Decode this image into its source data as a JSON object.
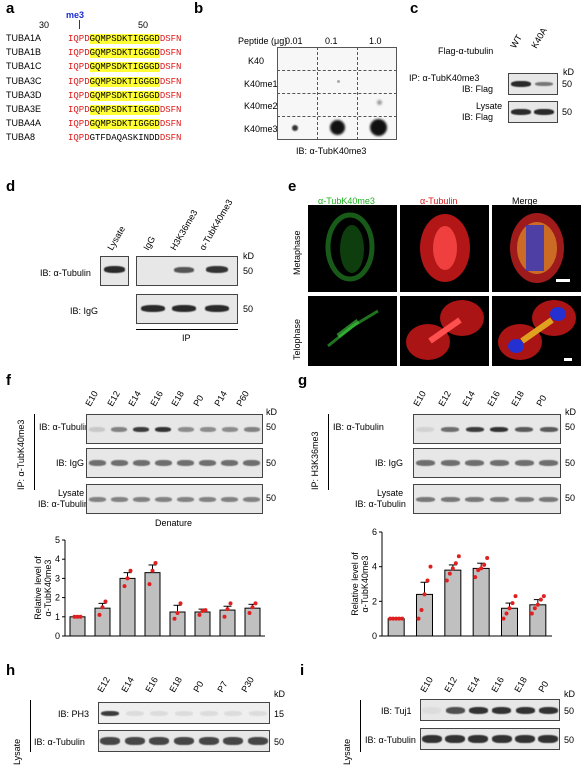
{
  "panels": {
    "a": {
      "letter": "a",
      "pos_start": "30",
      "pos_end": "50",
      "modification": "me3",
      "rows": [
        {
          "name": "TUBA1A",
          "pre": "IQPD",
          "core": "GQMPSDKTIGGGD",
          "post": "DSFN"
        },
        {
          "name": "TUBA1B",
          "pre": "IQPD",
          "core": "GQMPSDKTIGGGD",
          "post": "DSFN"
        },
        {
          "name": "TUBA1C",
          "pre": "IQPD",
          "core": "GQMPSDKTIGGGD",
          "post": "DSFN"
        },
        {
          "name": "TUBA3C",
          "pre": "IQPD",
          "core": "GQMPSDKTIGGGD",
          "post": "DSFN"
        },
        {
          "name": "TUBA3D",
          "pre": "IQPD",
          "core": "GQMPSDKTIGGGD",
          "post": "DSFN"
        },
        {
          "name": "TUBA3E",
          "pre": "IQPD",
          "core": "GQMPSDKTIGGGD",
          "post": "DSFN"
        },
        {
          "name": "TUBA4A",
          "pre": "IQPD",
          "core": "GQMPSDKTIGGGD",
          "post": "DSFN"
        },
        {
          "name": "TUBA8",
          "pre": "IQPD",
          "core": "GTFDAQASKINDD",
          "post": "DSFN"
        }
      ]
    },
    "b": {
      "letter": "b",
      "header": "Peptide (μg)",
      "amounts": [
        "0.01",
        "0.1",
        "1.0"
      ],
      "rows": [
        "K40",
        "K40me1",
        "K40me2",
        "K40me3"
      ],
      "ib": "IB: α-TubK40me3"
    },
    "c": {
      "letter": "c",
      "construct": "Flag-α-tubulin",
      "lanes": [
        "WT",
        "K40A"
      ],
      "kd": "kD",
      "row1_l1": "IP: α-TubK40me3",
      "row1_l2": "IB: Flag",
      "row2_l1": "Lysate",
      "row2_l2": "IB: Flag",
      "marker": "50"
    },
    "d": {
      "letter": "d",
      "lanes": [
        "Lysate",
        "IgG",
        "H3K36me3",
        "α-TubK40me3"
      ],
      "kd": "kD",
      "row1": "IB: α-Tubulin",
      "row2": "IB: IgG",
      "marker": "50",
      "ip": "IP"
    },
    "e": {
      "letter": "e",
      "cols": [
        "α-TubK40me3",
        "α-Tubulin",
        "Merge"
      ],
      "rows": [
        "Metaphase",
        "Telophase"
      ]
    },
    "f": {
      "letter": "f",
      "lanes": [
        "E10",
        "E12",
        "E14",
        "E16",
        "E18",
        "P0",
        "P14",
        "P60"
      ],
      "kd": "kD",
      "ip": "IP: α-TubK40me3",
      "row1": "IB: α-Tubulin",
      "row2": "IB: IgG",
      "row3_l1": "Lysate",
      "row3_l2": "IB: α-Tubulin",
      "marker": "50",
      "note": "Denature"
    },
    "g": {
      "letter": "g",
      "lanes": [
        "E10",
        "E12",
        "E14",
        "E16",
        "E18",
        "P0"
      ],
      "kd": "kD",
      "ip": "IP: H3K36me3",
      "row1": "IB: α-Tubulin",
      "row2": "IB: IgG",
      "row3_l1": "Lysate",
      "row3_l2": "IB: α-Tubulin",
      "marker": "50"
    },
    "h": {
      "letter": "h",
      "lanes": [
        "E12",
        "E14",
        "E16",
        "E18",
        "P0",
        "P7",
        "P30"
      ],
      "kd": "kD",
      "side": "Lysate",
      "row1": "IB: PH3",
      "row2": "IB: α-Tubulin",
      "marker1": "15",
      "marker2": "50"
    },
    "i": {
      "letter": "i",
      "lanes": [
        "E10",
        "E12",
        "E14",
        "E16",
        "E18",
        "P0"
      ],
      "kd": "kD",
      "side": "Lysate",
      "row1": "IB: Tuj1",
      "row2": "IB: α-Tubulin",
      "marker": "50"
    }
  },
  "chart_data": [
    {
      "type": "bar",
      "panel": "f",
      "categories": [
        "E10",
        "E12",
        "E14",
        "E16",
        "E18",
        "P0",
        "P14",
        "P60"
      ],
      "values": [
        1.0,
        1.45,
        3.0,
        3.3,
        1.25,
        1.25,
        1.35,
        1.45
      ],
      "errors": [
        0.02,
        0.25,
        0.3,
        0.4,
        0.35,
        0.15,
        0.2,
        0.2
      ],
      "points": [
        [
          1,
          1,
          1
        ],
        [
          1.1,
          1.5,
          1.8
        ],
        [
          2.6,
          3.0,
          3.4
        ],
        [
          2.7,
          3.4,
          3.8
        ],
        [
          0.9,
          1.2,
          1.7
        ],
        [
          1.1,
          1.3,
          1.35
        ],
        [
          1.0,
          1.4,
          1.7
        ],
        [
          1.2,
          1.5,
          1.7
        ]
      ],
      "ylabel_l1": "Relative level of",
      "ylabel_l2": "α-TubK40me3",
      "ylim": [
        0,
        5
      ],
      "yticks": [
        "0",
        "1",
        "2",
        "3",
        "4",
        "5"
      ],
      "bar_color": "#c0c0c0",
      "point_color": "#e02020"
    },
    {
      "type": "bar",
      "panel": "g",
      "categories": [
        "E10",
        "E12",
        "E14",
        "E16",
        "E18",
        "P0"
      ],
      "values": [
        1.0,
        2.4,
        3.8,
        3.9,
        1.6,
        1.8
      ],
      "errors": [
        0.02,
        0.7,
        0.3,
        0.3,
        0.3,
        0.3
      ],
      "points": [
        [
          1,
          1,
          1,
          1,
          1
        ],
        [
          1.0,
          1.5,
          2.4,
          3.2,
          4.0
        ],
        [
          3.2,
          3.6,
          3.9,
          4.2,
          4.6
        ],
        [
          3.4,
          3.8,
          3.9,
          4.1,
          4.5
        ],
        [
          1.0,
          1.3,
          1.6,
          1.9,
          2.3
        ],
        [
          1.3,
          1.6,
          1.8,
          2.1,
          2.3
        ]
      ],
      "ylabel_l1": "Relative level of",
      "ylabel_l2": "α-TubK40me3",
      "ylim": [
        0,
        6
      ],
      "yticks": [
        "0",
        "2",
        "4",
        "6"
      ],
      "bar_color": "#c0c0c0",
      "point_color": "#e02020"
    }
  ]
}
